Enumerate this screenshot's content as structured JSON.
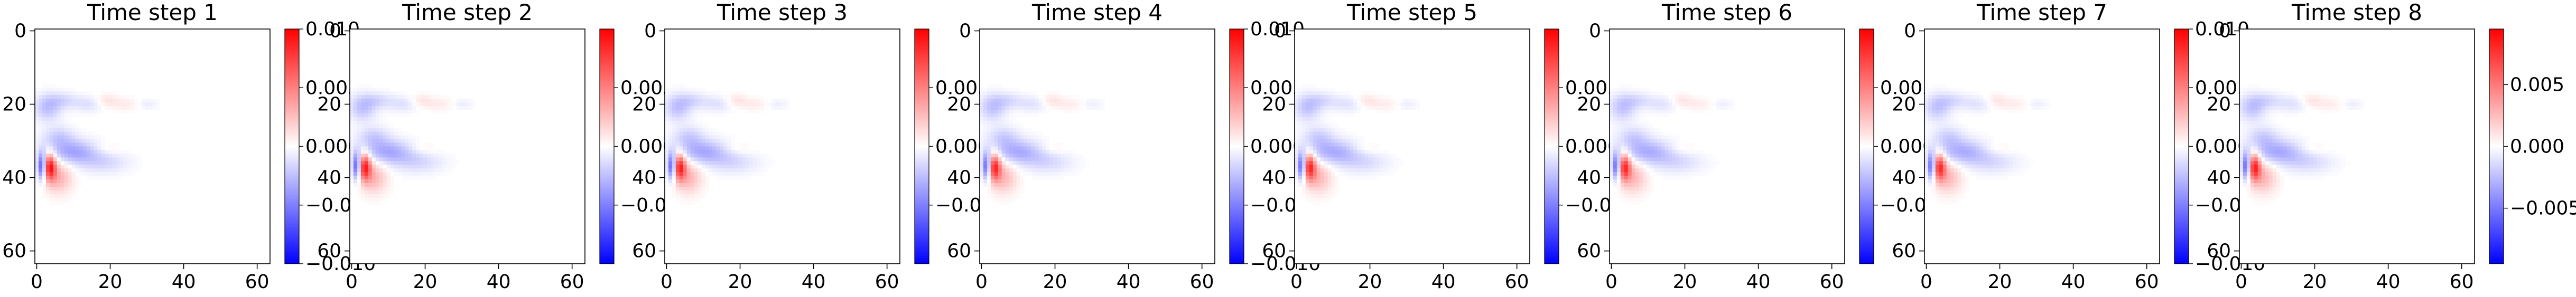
{
  "chart_data": {
    "type": "heatmap",
    "colormap": "bwr",
    "colormap_colors": [
      "#0000ff",
      "#ffffff",
      "#ff0000"
    ],
    "x_ticks": [
      0,
      20,
      40,
      60
    ],
    "y_ticks": [
      0,
      20,
      40,
      60
    ],
    "grid_size": 64,
    "xlim": [
      0,
      63
    ],
    "ylim": [
      63,
      0
    ],
    "grid": false,
    "legend": "colorbar-right",
    "description": "Eight heatmaps of a 64x64 field; mostly near-zero (white) with a localized strong red/blue pair near x≈2–4, y≈35–40 and faint blue/red streaks extending to the right near y≈20 and y≈30–40.",
    "features": [
      {
        "x": 3.5,
        "y": 37,
        "value": 0.009,
        "sx": 1.2,
        "sy": 2.5
      },
      {
        "x": 1.5,
        "y": 37,
        "value": -0.008,
        "sx": 0.8,
        "sy": 2.5
      },
      {
        "x": 6,
        "y": 40,
        "value": 0.003,
        "sx": 2.5,
        "sy": 3
      },
      {
        "x": 10,
        "y": 33,
        "value": -0.0035,
        "sx": 5,
        "sy": 2.2
      },
      {
        "x": 6,
        "y": 29,
        "value": -0.002,
        "sx": 3,
        "sy": 2
      },
      {
        "x": 3,
        "y": 21,
        "value": -0.0025,
        "sx": 2.5,
        "sy": 2.5
      },
      {
        "x": 7,
        "y": 19,
        "value": -0.0015,
        "sx": 3,
        "sy": 1.5
      },
      {
        "x": 14,
        "y": 20,
        "value": -0.0012,
        "sx": 3,
        "sy": 1.5
      },
      {
        "x": 19,
        "y": 19,
        "value": 0.0012,
        "sx": 2,
        "sy": 1.2
      },
      {
        "x": 24,
        "y": 20,
        "value": 0.0008,
        "sx": 3,
        "sy": 1.2
      },
      {
        "x": 19,
        "y": 32,
        "value": 0.0008,
        "sx": 3,
        "sy": 1.2
      },
      {
        "x": 18,
        "y": 36,
        "value": -0.0015,
        "sx": 5,
        "sy": 2
      },
      {
        "x": 30,
        "y": 20,
        "value": -0.0008,
        "sx": 2,
        "sy": 1
      }
    ],
    "panels": [
      {
        "title": "Time step 1",
        "cmin": -0.01,
        "cmax": 0.01,
        "colorbar_ticks": [
          -0.01,
          -0.005,
          0,
          0.005,
          0.01
        ],
        "colorbar_tick_labels": [
          "−0.010",
          "−0.005",
          "0.000",
          "0.005",
          "0.010"
        ],
        "intensity": 1.0
      },
      {
        "title": "Time step 2",
        "cmin": -0.01,
        "cmax": 0.01,
        "colorbar_ticks": [
          -0.005,
          0,
          0.005
        ],
        "colorbar_tick_labels": [
          "−0.005",
          "0.000",
          "0.005"
        ],
        "intensity": 0.97
      },
      {
        "title": "Time step 3",
        "cmin": -0.01,
        "cmax": 0.01,
        "colorbar_ticks": [
          -0.005,
          0,
          0.005
        ],
        "colorbar_tick_labels": [
          "−0.005",
          "0.000",
          "0.005"
        ],
        "intensity": 0.95
      },
      {
        "title": "Time step 4",
        "cmin": -0.01,
        "cmax": 0.01,
        "colorbar_ticks": [
          -0.01,
          -0.005,
          0,
          0.005,
          0.01
        ],
        "colorbar_tick_labels": [
          "−0.010",
          "−0.005",
          "0.000",
          "0.005",
          "0.010"
        ],
        "intensity": 0.93
      },
      {
        "title": "Time step 5",
        "cmin": -0.01,
        "cmax": 0.01,
        "colorbar_ticks": [
          -0.005,
          0,
          0.005
        ],
        "colorbar_tick_labels": [
          "−0.005",
          "0.000",
          "0.005"
        ],
        "intensity": 0.92
      },
      {
        "title": "Time step 6",
        "cmin": -0.01,
        "cmax": 0.01,
        "colorbar_ticks": [
          -0.005,
          0,
          0.005
        ],
        "colorbar_tick_labels": [
          "−0.005",
          "0.000",
          "0.005"
        ],
        "intensity": 0.91
      },
      {
        "title": "Time step 7",
        "cmin": -0.01,
        "cmax": 0.01,
        "colorbar_ticks": [
          -0.01,
          -0.005,
          0,
          0.005,
          0.01
        ],
        "colorbar_tick_labels": [
          "−0.010",
          "−0.005",
          "0.000",
          "0.005",
          "0.010"
        ],
        "intensity": 0.9
      },
      {
        "title": "Time step 8",
        "cmin": -0.0095,
        "cmax": 0.0095,
        "colorbar_ticks": [
          -0.005,
          0,
          0.005
        ],
        "colorbar_tick_labels": [
          "−0.005",
          "0.000",
          "0.005"
        ],
        "intensity": 0.9
      }
    ]
  }
}
